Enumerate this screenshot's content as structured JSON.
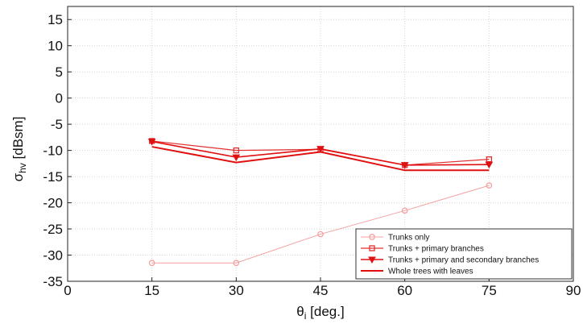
{
  "chart_data": {
    "type": "line",
    "xlabel": {
      "symbol": "θ",
      "subscript": "i",
      "unit": "[deg.]"
    },
    "ylabel": {
      "symbol": "σ",
      "subscript": "hv",
      "unit": "[dBsm]"
    },
    "xlim": [
      0,
      90
    ],
    "ylim": [
      -35,
      17.5
    ],
    "xticks": [
      0,
      15,
      30,
      45,
      60,
      75,
      90
    ],
    "yticks": [
      -35,
      -30,
      -25,
      -20,
      -15,
      -10,
      -5,
      0,
      5,
      10,
      15
    ],
    "grid": true,
    "legend_position": "bottom-right",
    "x": [
      15,
      30,
      45,
      60,
      75
    ],
    "series": [
      {
        "name": "Trunks only",
        "values": [
          -31.5,
          -31.5,
          -26,
          -21.5,
          -16.7
        ],
        "marker": "circle",
        "color": "#f4a0a0",
        "line_width": 1
      },
      {
        "name": "Trunks + primary branches",
        "values": [
          -8.2,
          -10,
          -9.8,
          -12.8,
          -11.7
        ],
        "marker": "square",
        "color": "#e03030",
        "line_width": 1.2
      },
      {
        "name": "Trunks + primary and secondary branches",
        "values": [
          -8.3,
          -11.3,
          -9.7,
          -12.8,
          -12.7
        ],
        "marker": "triangle-down",
        "color": "#e01010",
        "line_width": 1.6
      },
      {
        "name": "Whole trees with leaves",
        "values": [
          -9.3,
          -12.3,
          -10.3,
          -13.8,
          -13.8
        ],
        "marker": "none",
        "color": "#e01010",
        "line_width": 2
      }
    ]
  }
}
